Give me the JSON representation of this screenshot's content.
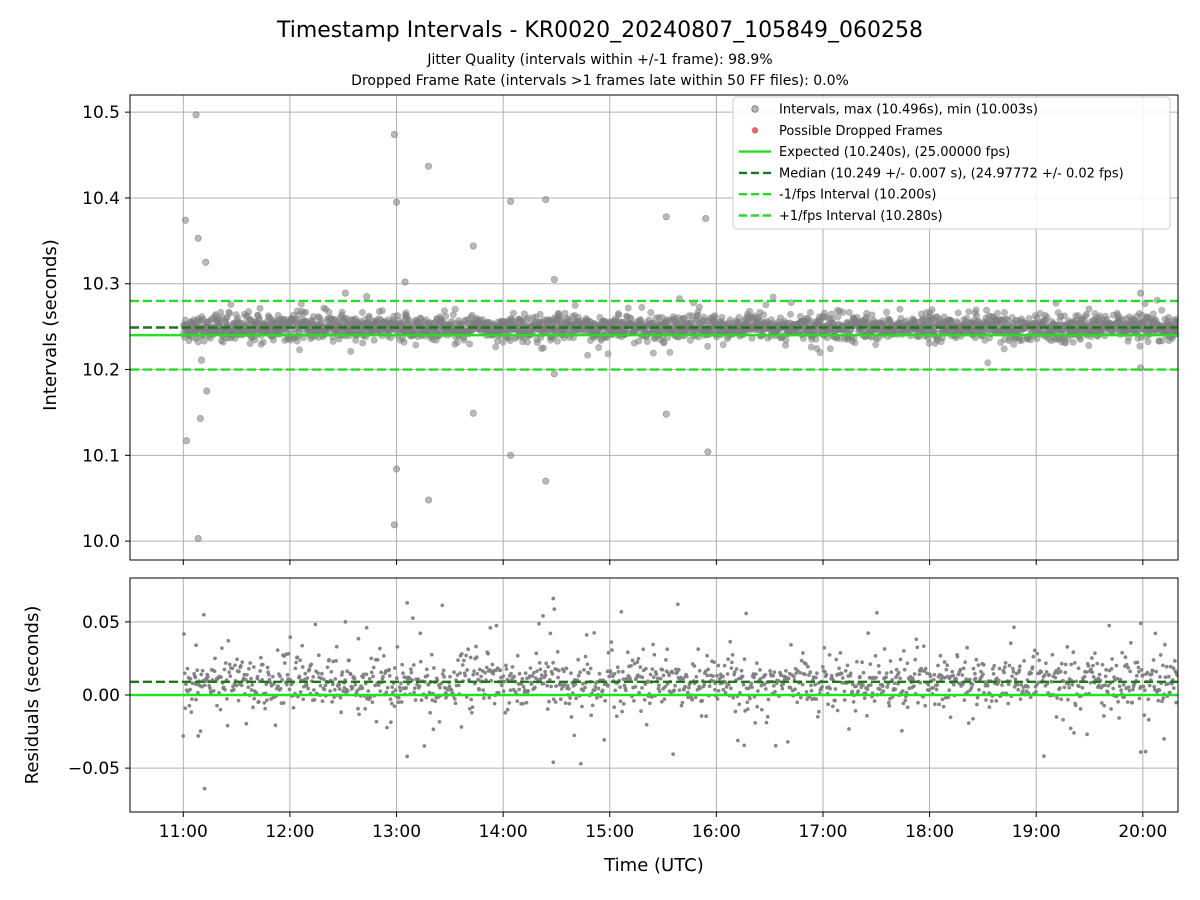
{
  "title": "Timestamp Intervals - KR0020_20240807_105849_060258",
  "subtitle_1": "Jitter Quality (intervals within +/-1 frame): 98.9%",
  "subtitle_2": "Dropped Frame Rate (intervals >1 frames late within 50 FF files): 0.0%",
  "colors": {
    "points": "#808080",
    "dropped": "#f05050",
    "expected": "#22e022",
    "median": "#1a7a1a",
    "bounds": "#22e022"
  },
  "chart_data": [
    {
      "type": "scatter",
      "name": "intervals",
      "xlabel": "",
      "ylabel": "Intervals (seconds)",
      "xlim": [
        10.5,
        20.33
      ],
      "ylim": [
        9.978,
        10.52
      ],
      "yticks": [
        10.0,
        10.1,
        10.2,
        10.3,
        10.4,
        10.5
      ],
      "ytick_labels": [
        "10.0",
        "10.1",
        "10.2",
        "10.3",
        "10.4",
        "10.5"
      ],
      "grid": true,
      "legend_placement": "top-right",
      "legend": [
        "Intervals, max (10.496s), min (10.003s)",
        "Possible Dropped Frames",
        "Expected (10.240s), (25.00000 fps)",
        "Median (10.249 +/- 0.007 s), (24.97772 +/- 0.02 fps)",
        "-1/fps Interval (10.200s)",
        "+1/fps Interval (10.280s)"
      ],
      "lines": {
        "expected": 10.24,
        "median": 10.249,
        "lower": 10.2,
        "upper": 10.28
      },
      "series": [
        {
          "name": "Intervals, max (10.496s), min (10.003s)",
          "band": {
            "x_start": 11.0,
            "x_end": 20.33,
            "center": 10.249,
            "spread": 0.007
          },
          "outliers": [
            [
              11.02,
              10.374
            ],
            [
              11.03,
              10.117
            ],
            [
              11.12,
              10.497
            ],
            [
              11.14,
              10.353
            ],
            [
              11.14,
              10.003
            ],
            [
              11.16,
              10.143
            ],
            [
              11.21,
              10.325
            ],
            [
              11.22,
              10.175
            ],
            [
              11.17,
              10.211
            ],
            [
              12.52,
              10.289
            ],
            [
              12.72,
              10.285
            ],
            [
              12.98,
              10.474
            ],
            [
              13.0,
              10.395
            ],
            [
              13.0,
              10.084
            ],
            [
              12.98,
              10.019
            ],
            [
              13.08,
              10.302
            ],
            [
              13.3,
              10.437
            ],
            [
              13.3,
              10.048
            ],
            [
              13.72,
              10.344
            ],
            [
              13.72,
              10.149
            ],
            [
              14.07,
              10.396
            ],
            [
              14.07,
              10.1
            ],
            [
              14.4,
              10.398
            ],
            [
              14.4,
              10.07
            ],
            [
              14.48,
              10.305
            ],
            [
              14.48,
              10.195
            ],
            [
              15.53,
              10.378
            ],
            [
              15.53,
              10.148
            ],
            [
              15.9,
              10.376
            ],
            [
              15.92,
              10.104
            ],
            [
              19.98,
              10.289
            ],
            [
              19.98,
              10.202
            ]
          ]
        }
      ]
    },
    {
      "type": "scatter",
      "name": "residuals",
      "xlabel": "Time (UTC)",
      "ylabel": "Residuals (seconds)",
      "xlim": [
        10.5,
        20.33
      ],
      "ylim": [
        -0.08,
        0.08
      ],
      "xticks": [
        11,
        12,
        13,
        14,
        15,
        16,
        17,
        18,
        19,
        20
      ],
      "xtick_labels": [
        "11:00",
        "12:00",
        "13:00",
        "14:00",
        "15:00",
        "16:00",
        "17:00",
        "18:00",
        "19:00",
        "20:00"
      ],
      "yticks": [
        -0.05,
        0.0,
        0.05
      ],
      "ytick_labels": [
        "−0.05",
        "0.00",
        "0.05"
      ],
      "grid": true,
      "lines": {
        "expected": 0.0,
        "median": 0.009
      },
      "series": [
        {
          "name": "residuals",
          "band": {
            "x_start": 11.0,
            "x_end": 20.33,
            "center": 0.009,
            "spread": 0.008
          },
          "outliers": [
            [
              11.12,
              0.034
            ],
            [
              11.14,
              -0.028
            ],
            [
              11.2,
              -0.064
            ],
            [
              12.52,
              0.05
            ],
            [
              12.72,
              0.046
            ],
            [
              13.1,
              0.063
            ],
            [
              13.1,
              -0.042
            ],
            [
              14.47,
              0.066
            ],
            [
              14.47,
              -0.046
            ],
            [
              19.98,
              0.049
            ],
            [
              19.98,
              -0.039
            ],
            [
              20.2,
              -0.03
            ]
          ]
        }
      ]
    }
  ]
}
